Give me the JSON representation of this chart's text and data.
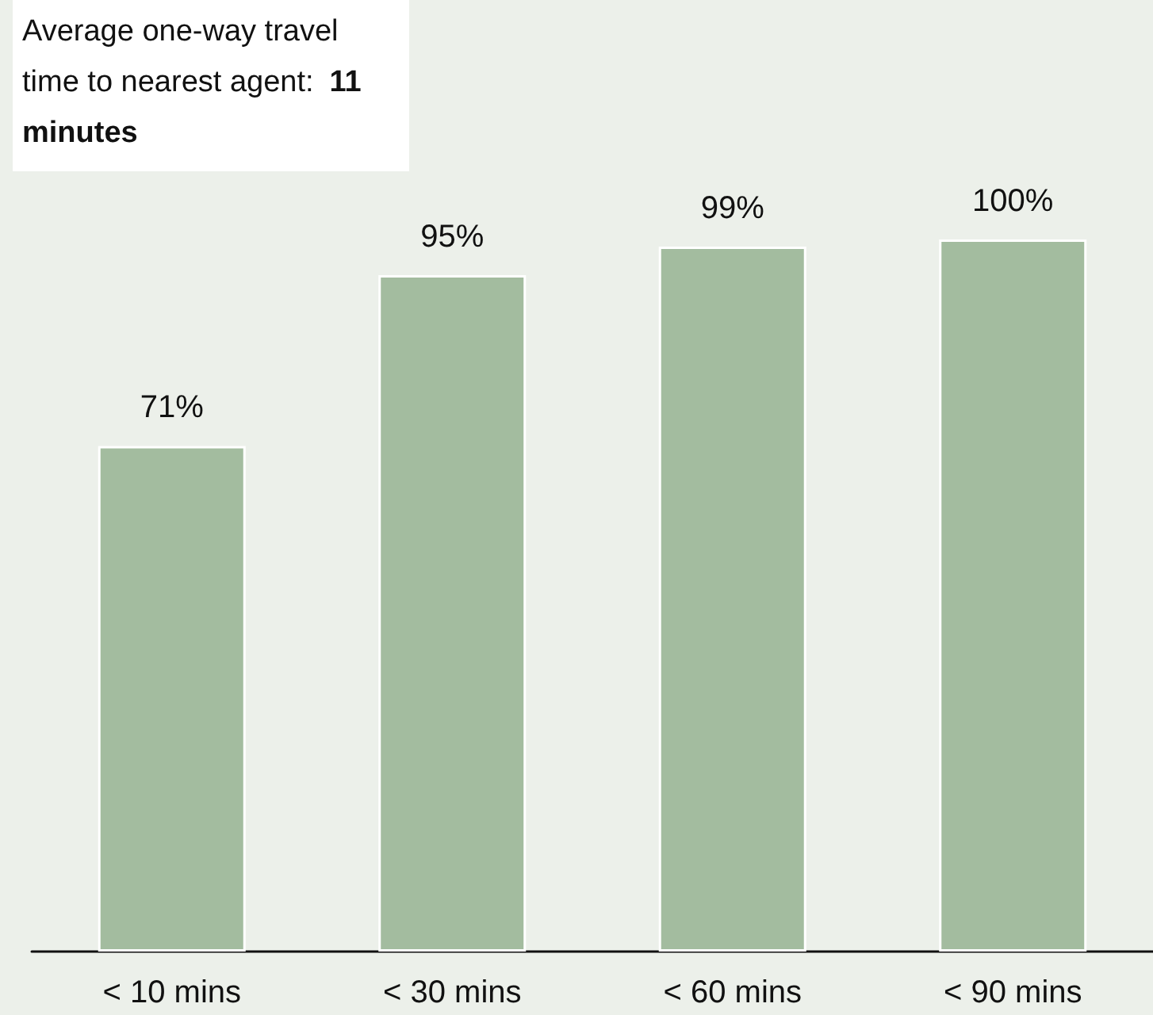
{
  "chart_data": {
    "type": "bar",
    "title": "Average one-way travel time to nearest agent: 11 minutes",
    "categories": [
      "< 10 mins",
      "< 30 mins",
      "< 60 mins",
      "< 90 mins"
    ],
    "values": [
      71,
      95,
      99,
      100
    ],
    "color": "#a3bc9f",
    "value_labels": [
      "71%",
      "95%",
      "99%",
      "100%"
    ]
  }
}
